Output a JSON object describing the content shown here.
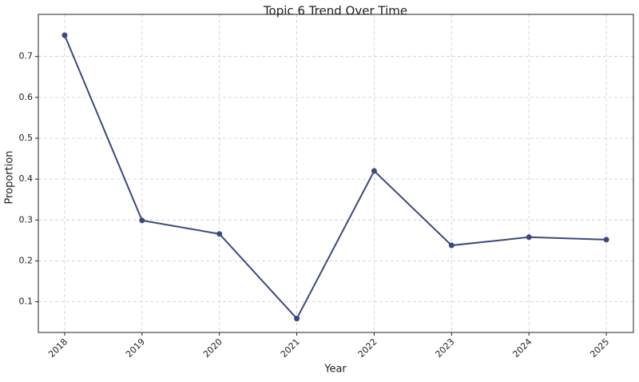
{
  "chart_data": {
    "type": "line",
    "title": "Topic 6 Trend Over Time",
    "x_label": "Year",
    "y_label": "Proportion",
    "x": [
      2018,
      2019,
      2020,
      2021,
      2022,
      2023,
      2024,
      2025
    ],
    "series": [
      {
        "name": "Topic 6",
        "color": "#3b4a7e",
        "values": [
          0.752,
          0.299,
          0.266,
          0.059,
          0.42,
          0.238,
          0.258,
          0.252
        ]
      }
    ],
    "xlim": [
      2017.66,
      2025.35
    ],
    "xticks": [
      2018,
      2019,
      2020,
      2021,
      2022,
      2023,
      2024,
      2025
    ],
    "ylim": [
      0.025,
      0.803
    ],
    "yticks": [
      0.1,
      0.2,
      0.3,
      0.4,
      0.5,
      0.6,
      0.7
    ],
    "grid": true
  }
}
